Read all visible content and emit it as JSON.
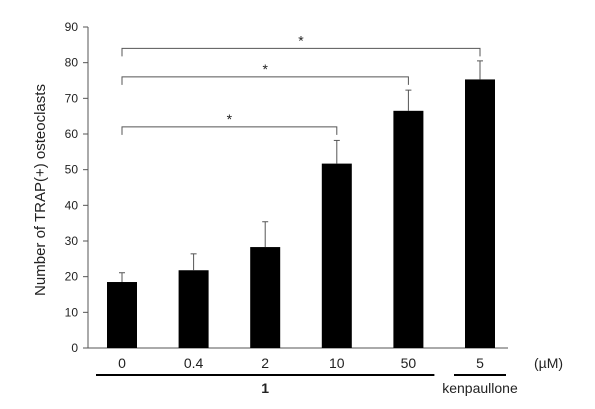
{
  "chart_data": {
    "type": "bar",
    "ylabel": "Number of TRAP(+) osteoclasts",
    "ylim": [
      0,
      90
    ],
    "yticks": [
      0,
      10,
      20,
      30,
      40,
      50,
      60,
      70,
      80,
      90
    ],
    "categories": [
      "0",
      "0.4",
      "2",
      "10",
      "50",
      "5"
    ],
    "values": [
      18.5,
      21.8,
      28.3,
      51.7,
      66.5,
      75.3
    ],
    "errors": [
      2.6,
      4.6,
      7.1,
      6.5,
      5.8,
      5.2
    ],
    "unit_label": "(µM)",
    "groups": [
      {
        "label": "1",
        "bold": true,
        "categories": [
          "0",
          "0.4",
          "2",
          "10",
          "50"
        ]
      },
      {
        "label": "kenpaullone",
        "bold": false,
        "categories": [
          "5"
        ]
      }
    ],
    "significance": [
      {
        "from": "0",
        "to": "10",
        "label": "*",
        "level": 62
      },
      {
        "from": "0",
        "to": "50",
        "label": "*",
        "level": 76
      },
      {
        "from": "0",
        "to": "5",
        "label": "*",
        "level": 84
      }
    ],
    "bar_color": "#000000",
    "grid": false
  }
}
